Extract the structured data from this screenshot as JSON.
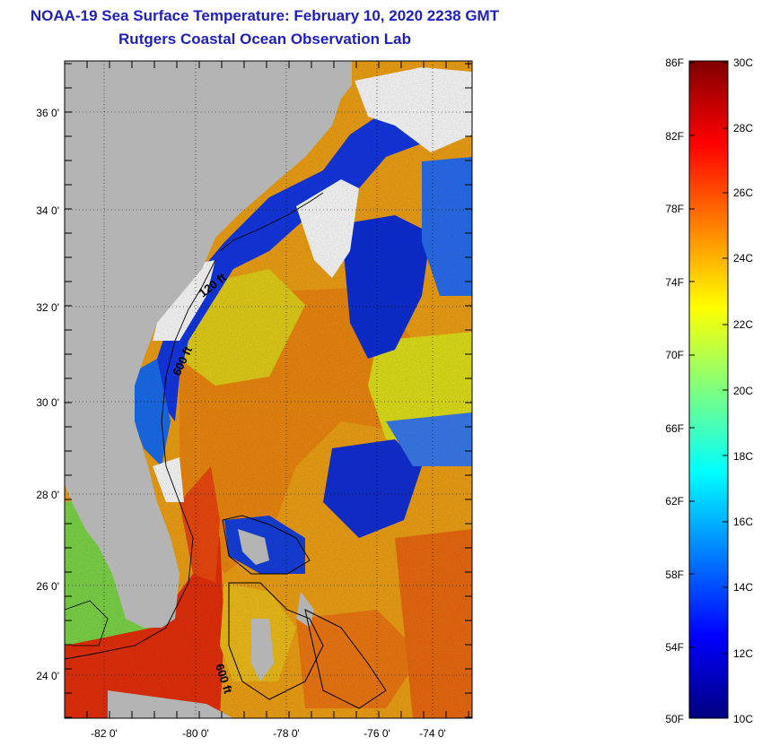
{
  "header": {
    "title": "NOAA-19 Sea Surface Temperature:  February 10, 2020 2238 GMT",
    "subtitle": "Rutgers Coastal Ocean Observation Lab"
  },
  "map": {
    "lat_labels": [
      "36 0'",
      "34 0'",
      "32 0'",
      "30 0'",
      "28 0'",
      "26 0'",
      "24 0'"
    ],
    "lon_labels": [
      "-82 0'",
      "-80 0'",
      "-78 0'",
      "-76 0'",
      "-74 0'"
    ],
    "isobaths": [
      "120 ft",
      "600 ft",
      "600 ft"
    ],
    "colors": {
      "land": "#b4b4b4",
      "cloud": "#ffffff",
      "cold": "#0018c8",
      "warm": "#e82a0a"
    }
  },
  "colorbar": {
    "f_labels": [
      "86F",
      "82F",
      "78F",
      "74F",
      "70F",
      "66F",
      "62F",
      "58F",
      "54F",
      "50F"
    ],
    "c_labels": [
      "30C",
      "28C",
      "26C",
      "24C",
      "22C",
      "20C",
      "18C",
      "16C",
      "14C",
      "12C",
      "10C"
    ],
    "stops": [
      "#00007f",
      "#0000ff",
      "#007fff",
      "#00ffff",
      "#7fff7f",
      "#ffff00",
      "#ff7f00",
      "#ff0000",
      "#7f0000"
    ]
  }
}
